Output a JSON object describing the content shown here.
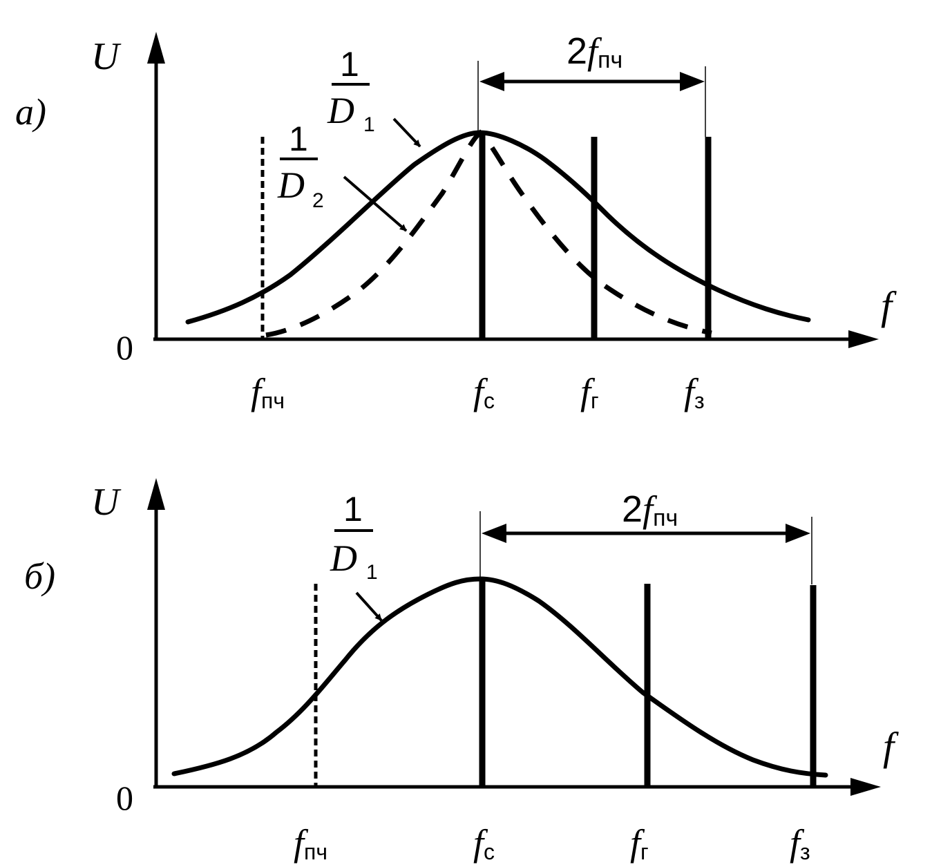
{
  "panel_a": {
    "tag": "а)",
    "y_axis": "U",
    "x_axis": "f",
    "origin": "0",
    "curve1": {
      "num": "1",
      "den": "D",
      "sub": "1"
    },
    "curve2": {
      "num": "1",
      "den": "D",
      "sub": "2"
    },
    "span": {
      "coef": "2",
      "f": "f",
      "sub": "пч"
    },
    "ticks": [
      {
        "f": "f",
        "sub": "пч"
      },
      {
        "f": "f",
        "sub": "с"
      },
      {
        "f": "f",
        "sub": "г"
      },
      {
        "f": "f",
        "sub": "з"
      }
    ]
  },
  "panel_b": {
    "tag": "б)",
    "y_axis": "U",
    "x_axis": "f",
    "origin": "0",
    "curve1": {
      "num": "1",
      "den": "D",
      "sub": "1"
    },
    "span": {
      "coef": "2",
      "f": "f",
      "sub": "пч"
    },
    "ticks": [
      {
        "f": "f",
        "sub": "пч"
      },
      {
        "f": "f",
        "sub": "с"
      },
      {
        "f": "f",
        "sub": "г"
      },
      {
        "f": "f",
        "sub": "з"
      }
    ]
  }
}
